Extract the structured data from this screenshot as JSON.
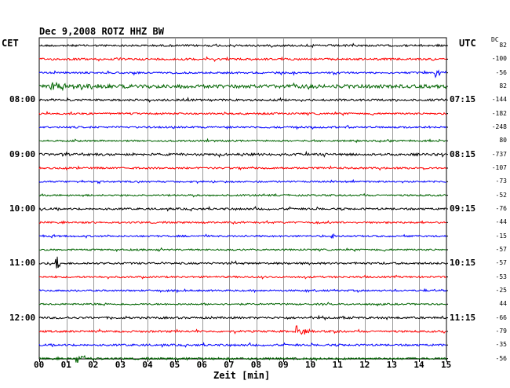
{
  "header": {
    "left_label": "CET",
    "right_label": "UTC",
    "title": "Dec 9,2008    ROTZ HHZ BW",
    "dc_label": "DC"
  },
  "chart_data": {
    "type": "line",
    "title": "Dec 9,2008    ROTZ HHZ BW",
    "xlabel": "Zeit [min]",
    "xlim": [
      0,
      15
    ],
    "x_ticks": [
      "00",
      "01",
      "02",
      "03",
      "04",
      "05",
      "06",
      "07",
      "08",
      "09",
      "10",
      "11",
      "12",
      "13",
      "14",
      "15"
    ],
    "left_time_labels": [
      {
        "trace": 4,
        "label": "08:00"
      },
      {
        "trace": 8,
        "label": "09:00"
      },
      {
        "trace": 12,
        "label": "10:00"
      },
      {
        "trace": 16,
        "label": "11:00"
      },
      {
        "trace": 20,
        "label": "12:00"
      }
    ],
    "right_time_labels": [
      {
        "trace": 4,
        "label": "07:15"
      },
      {
        "trace": 8,
        "label": "08:15"
      },
      {
        "trace": 12,
        "label": "09:15"
      },
      {
        "trace": 16,
        "label": "10:15"
      },
      {
        "trace": 20,
        "label": "11:15"
      }
    ],
    "trace_colors": [
      "#000000",
      "#ff0000",
      "#0000ff",
      "#006400"
    ],
    "series": [
      {
        "dc": "82",
        "amp": 1.2,
        "events": []
      },
      {
        "dc": "-100",
        "amp": 1.2,
        "events": []
      },
      {
        "dc": "-56",
        "amp": 1.1,
        "events": [
          {
            "t": 14.6,
            "amp": 8,
            "dur": 0.5
          }
        ]
      },
      {
        "dc": "82",
        "amp": 2.2,
        "events": [
          {
            "t": 0.4,
            "amp": 6,
            "dur": 2.5
          }
        ]
      },
      {
        "dc": "-144",
        "amp": 1.2,
        "events": []
      },
      {
        "dc": "-182",
        "amp": 1.1,
        "events": []
      },
      {
        "dc": "-248",
        "amp": 1.1,
        "events": []
      },
      {
        "dc": "80",
        "amp": 1.0,
        "events": []
      },
      {
        "dc": "-737",
        "amp": 1.4,
        "events": []
      },
      {
        "dc": "-107",
        "amp": 1.1,
        "events": []
      },
      {
        "dc": "-73",
        "amp": 1.0,
        "events": []
      },
      {
        "dc": "-52",
        "amp": 1.0,
        "events": []
      },
      {
        "dc": "-76",
        "amp": 1.2,
        "events": []
      },
      {
        "dc": "-44",
        "amp": 1.1,
        "events": []
      },
      {
        "dc": "-15",
        "amp": 1.0,
        "events": [
          {
            "t": 0.5,
            "amp": 3,
            "dur": 0.15
          },
          {
            "t": 10.8,
            "amp": 4,
            "dur": 0.2
          }
        ]
      },
      {
        "dc": "-57",
        "amp": 1.0,
        "events": []
      },
      {
        "dc": "-57",
        "amp": 1.2,
        "events": [
          {
            "t": 0.65,
            "amp": 11,
            "dur": 0.2
          }
        ]
      },
      {
        "dc": "-53",
        "amp": 1.0,
        "events": []
      },
      {
        "dc": "-25",
        "amp": 1.0,
        "events": []
      },
      {
        "dc": "44",
        "amp": 1.0,
        "events": []
      },
      {
        "dc": "-66",
        "amp": 1.2,
        "events": []
      },
      {
        "dc": "-79",
        "amp": 1.2,
        "events": [
          {
            "t": 9.5,
            "amp": 8,
            "dur": 0.6
          },
          {
            "t": 10.9,
            "amp": 2.5,
            "dur": 0.3
          }
        ]
      },
      {
        "dc": "-35",
        "amp": 1.2,
        "events": []
      },
      {
        "dc": "-56",
        "amp": 1.2,
        "events": [
          {
            "t": 1.4,
            "amp": 6,
            "dur": 0.8
          },
          {
            "t": 5.1,
            "amp": 2.5,
            "dur": 0.5
          }
        ]
      }
    ]
  }
}
